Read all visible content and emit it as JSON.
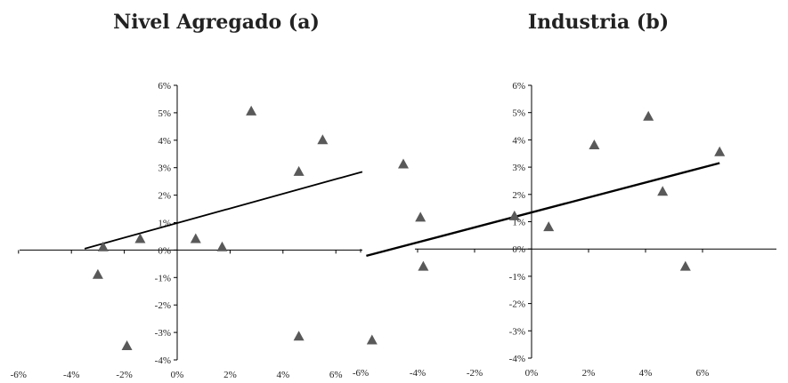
{
  "chart_data": [
    {
      "type": "scatter",
      "title": "Nivel Agregado (a)",
      "xlim": [
        -6,
        7
      ],
      "ylim": [
        -4,
        6
      ],
      "x_ticks": [
        "-6%",
        "-4%",
        "-2%",
        "0%",
        "2%",
        "4%",
        "6%"
      ],
      "y_ticks": [
        "-4%",
        "-3%",
        "-2%",
        "-1%",
        "0%",
        "1%",
        "2%",
        "3%",
        "4%",
        "5%",
        "6%"
      ],
      "marker": "triangle",
      "marker_color": "#595959",
      "line_color": "#000000",
      "series": [
        {
          "x": [
            -3.0,
            -2.8,
            -1.9,
            -1.4,
            0.7,
            1.7,
            2.8,
            4.6,
            4.6,
            5.5
          ],
          "y": [
            -0.9,
            0.1,
            -3.5,
            0.4,
            0.4,
            0.1,
            5.05,
            2.85,
            -3.15,
            4.0
          ]
        }
      ],
      "trendline": {
        "x": [
          -3.5,
          7.0
        ],
        "y": [
          0.05,
          2.85
        ]
      }
    },
    {
      "type": "scatter",
      "title": "Industria (b)",
      "xlim": [
        -6.5,
        6.8
      ],
      "ylim": [
        -4,
        6
      ],
      "x_ticks": [
        "-6%",
        "-4%",
        "-2%",
        "0%",
        "2%",
        "4%",
        "6%"
      ],
      "y_ticks": [
        "-4%",
        "-3%",
        "-2%",
        "-1%",
        "0%",
        "1%",
        "2%",
        "3%",
        "4%",
        "5%",
        "6%"
      ],
      "marker": "triangle",
      "marker_color": "#595959",
      "line_color": "#000000",
      "series": [
        {
          "x": [
            -5.6,
            -4.5,
            -3.9,
            -3.8,
            -0.6,
            0.6,
            2.2,
            4.1,
            4.6,
            5.4,
            6.6
          ],
          "y": [
            -3.35,
            3.1,
            1.15,
            -0.65,
            1.2,
            0.8,
            3.8,
            4.85,
            2.1,
            -0.65,
            3.55
          ]
        }
      ],
      "trendline": {
        "x": [
          -5.8,
          6.6
        ],
        "y": [
          -0.25,
          3.15
        ]
      }
    }
  ]
}
